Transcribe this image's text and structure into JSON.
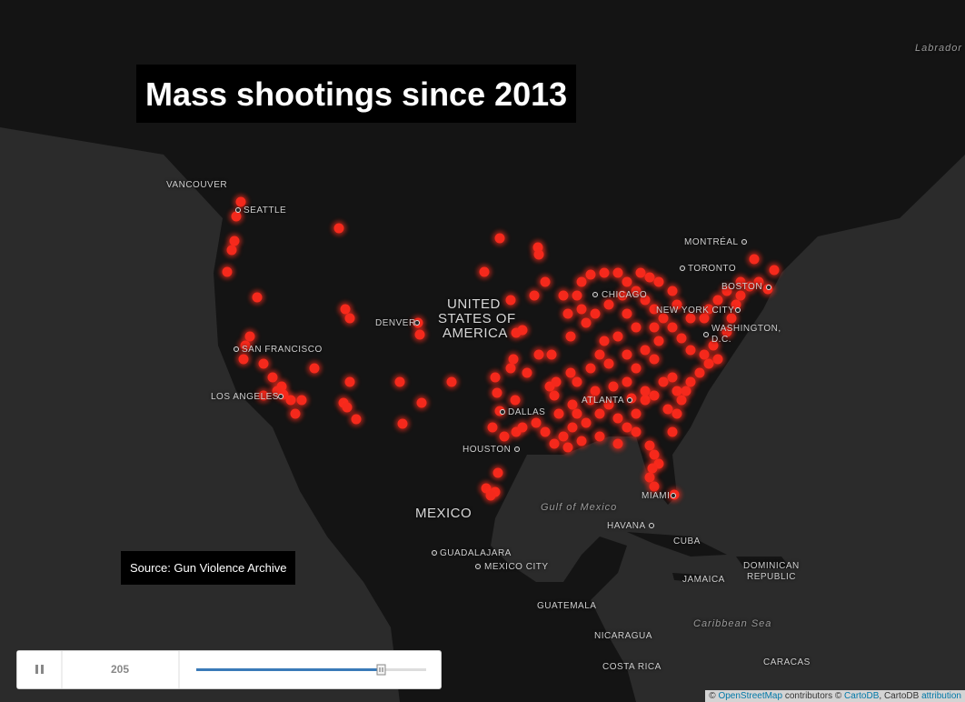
{
  "title": "Mass shootings since 2013",
  "source": "Source: Gun Violence Archive",
  "map_labels": [
    "VANCOUVER",
    "SEATTLE",
    "DENVER",
    "SAN FRANCISCO",
    "LOS ANGELES",
    "CHICAGO",
    "MONTRÉAL",
    "TORONTO",
    "BOSTON",
    "NEW YORK CITY",
    "WASHINGTON,",
    "D.C.",
    "ATLANTA",
    "DALLAS",
    "HOUSTON",
    "MIAMI",
    "Gulf of Mexico",
    "HAVANA",
    "MEXICO",
    "GUADALAJARA",
    "MEXICO CITY",
    "CUBA",
    "DOMINICAN",
    "REPUBLIC",
    "JAMAICA",
    "GUATEMALA",
    "Caribbean Sea",
    "NICARAGUA",
    "COSTA RICA",
    "CARACAS",
    "Labrador",
    "UNITED",
    "STATES OF",
    "AMERICA"
  ],
  "player": {
    "counter": "205"
  },
  "attribution": [
    "©",
    "OpenStreetMap",
    "contributors ©",
    "CartoDB",
    ", CartoDB",
    "attribution"
  ]
}
